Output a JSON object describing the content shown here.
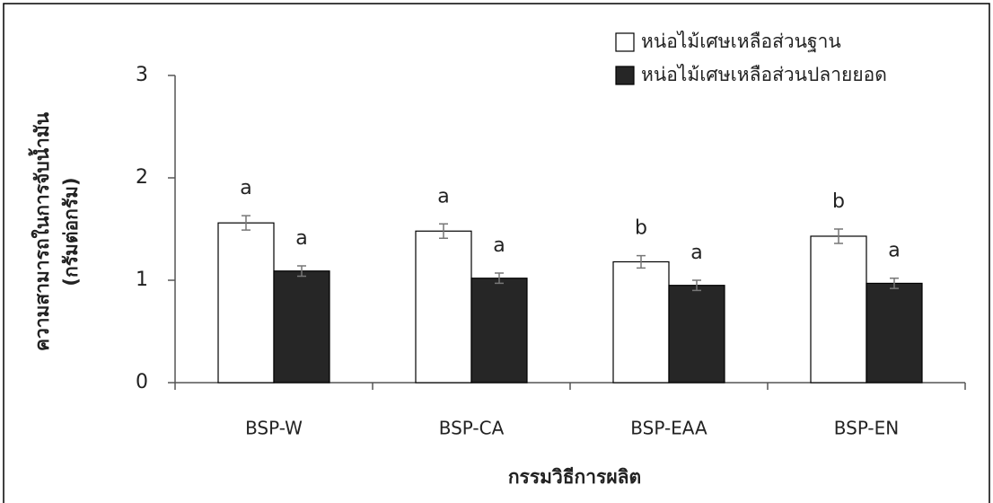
{
  "chart_data": {
    "type": "bar",
    "y_label": [
      "ความสามารถในการจับน้ำมัน",
      "(กรัมต่อกรัม)"
    ],
    "x_label": "กรรมวิธีการผลิต",
    "categories": [
      "BSP-W",
      "BSP-CA",
      "BSP-EAA",
      "BSP-EN"
    ],
    "series": [
      {
        "name": "หน่อไม้เศษเหลือส่วนฐาน",
        "color": "#ffffff",
        "values": [
          1.56,
          1.48,
          1.18,
          1.43
        ],
        "errors": [
          0.07,
          0.07,
          0.06,
          0.07
        ],
        "letters": [
          "a",
          "a",
          "b",
          "b"
        ]
      },
      {
        "name": "หน่อไม้เศษเหลือส่วนปลายยอด",
        "color": "#262626",
        "values": [
          1.09,
          1.02,
          0.95,
          0.97
        ],
        "errors": [
          0.05,
          0.05,
          0.05,
          0.05
        ],
        "letters": [
          "a",
          "a",
          "a",
          "a"
        ]
      }
    ],
    "ylim": [
      0,
      3
    ],
    "yticks": [
      0,
      1,
      2,
      3
    ],
    "legend": "top-right"
  }
}
